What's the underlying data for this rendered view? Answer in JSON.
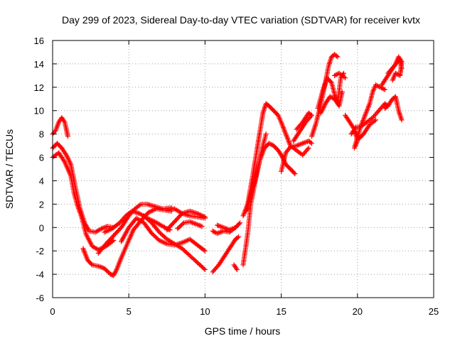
{
  "chart_data": {
    "type": "scatter",
    "title": "Day 299 of 2023, Sidereal Day-to-day VTEC variation (SDTVAR) for receiver kvtx",
    "xlabel": "GPS time / hours",
    "ylabel": "SDTVAR / TECUs",
    "xlim": [
      0,
      25
    ],
    "ylim": [
      -6,
      16
    ],
    "xticks": [
      0,
      5,
      10,
      15,
      20,
      25
    ],
    "yticks": [
      -6,
      -4,
      -2,
      0,
      2,
      4,
      6,
      8,
      10,
      12,
      14,
      16
    ],
    "xtick_labels": [
      "0",
      "5",
      "10",
      "15",
      "20",
      "25"
    ],
    "ytick_labels": [
      "-6",
      "-4",
      "-2",
      "0",
      "2",
      "4",
      "6",
      "8",
      "10",
      "12",
      "14",
      "16"
    ],
    "grid": true,
    "marker": "plus",
    "color": "#ff0000",
    "series": [
      {
        "points": [
          [
            0.0,
            8.0
          ],
          [
            0.2,
            8.3
          ],
          [
            0.4,
            9.0
          ],
          [
            0.6,
            9.4
          ],
          [
            0.8,
            9.0
          ],
          [
            1.0,
            7.8
          ]
        ]
      },
      {
        "points": [
          [
            0.0,
            6.8
          ],
          [
            0.3,
            7.2
          ],
          [
            0.6,
            6.8
          ],
          [
            0.9,
            6.2
          ],
          [
            1.2,
            5.4
          ],
          [
            1.5,
            3.4
          ],
          [
            1.8,
            1.6
          ],
          [
            2.1,
            0.4
          ],
          [
            2.4,
            -0.3
          ],
          [
            2.8,
            -0.4
          ],
          [
            3.2,
            -0.1
          ],
          [
            3.6,
            0.1
          ],
          [
            4.0,
            0.0
          ]
        ]
      },
      {
        "points": [
          [
            0.0,
            6.0
          ],
          [
            0.4,
            6.4
          ],
          [
            0.8,
            5.6
          ],
          [
            1.2,
            4.4
          ],
          [
            1.4,
            3.0
          ],
          [
            1.6,
            2.0
          ],
          [
            1.9,
            0.9
          ],
          [
            2.2,
            -0.6
          ],
          [
            2.6,
            -1.6
          ],
          [
            3.0,
            -1.9
          ],
          [
            3.5,
            -1.6
          ],
          [
            4.0,
            -1.1
          ]
        ]
      },
      {
        "points": [
          [
            2.0,
            -1.8
          ],
          [
            2.3,
            -2.8
          ],
          [
            2.6,
            -3.2
          ],
          [
            3.0,
            -3.3
          ],
          [
            3.4,
            -3.5
          ],
          [
            3.8,
            -4.0
          ],
          [
            4.0,
            -4.1
          ],
          [
            4.2,
            -3.6
          ],
          [
            4.5,
            -2.6
          ],
          [
            4.9,
            -1.4
          ],
          [
            5.3,
            -0.2
          ],
          [
            5.8,
            0.6
          ],
          [
            6.3,
            1.3
          ],
          [
            6.8,
            1.6
          ],
          [
            7.3,
            1.5
          ],
          [
            7.8,
            1.4
          ]
        ]
      },
      {
        "points": [
          [
            3.0,
            -2.2
          ],
          [
            3.5,
            -1.4
          ],
          [
            4.0,
            -0.7
          ],
          [
            4.5,
            0.0
          ],
          [
            5.0,
            1.0
          ],
          [
            5.4,
            1.6
          ],
          [
            5.8,
            2.0
          ],
          [
            6.2,
            2.0
          ],
          [
            6.7,
            1.8
          ],
          [
            7.2,
            1.6
          ],
          [
            7.8,
            1.7
          ]
        ]
      },
      {
        "points": [
          [
            3.4,
            -0.4
          ],
          [
            3.9,
            -0.1
          ],
          [
            4.4,
            0.4
          ],
          [
            4.8,
            1.0
          ],
          [
            5.2,
            1.4
          ],
          [
            5.7,
            1.2
          ],
          [
            6.2,
            0.8
          ],
          [
            6.7,
            0.5
          ],
          [
            7.1,
            0.2
          ],
          [
            7.5,
            -0.1
          ],
          [
            7.7,
            -0.2
          ]
        ]
      },
      {
        "points": [
          [
            4.5,
            -1.2
          ],
          [
            5.0,
            0.0
          ],
          [
            5.5,
            0.8
          ],
          [
            6.0,
            0.4
          ],
          [
            6.5,
            -0.5
          ],
          [
            7.0,
            -1.1
          ],
          [
            7.5,
            -1.4
          ],
          [
            8.0,
            -1.5
          ],
          [
            8.5,
            -1.3
          ],
          [
            9.0,
            -1.0
          ],
          [
            9.5,
            -1.5
          ],
          [
            10.0,
            -2.0
          ]
        ]
      },
      {
        "points": [
          [
            6.0,
            1.0
          ],
          [
            6.5,
            0.4
          ],
          [
            7.0,
            -0.4
          ],
          [
            7.5,
            -1.0
          ],
          [
            8.0,
            -1.4
          ],
          [
            8.5,
            -1.8
          ],
          [
            9.0,
            -2.4
          ],
          [
            9.5,
            -3.0
          ],
          [
            10.0,
            -3.6
          ]
        ]
      },
      {
        "points": [
          [
            7.5,
            1.5
          ],
          [
            8.0,
            1.6
          ],
          [
            8.5,
            1.2
          ],
          [
            9.0,
            1.0
          ],
          [
            9.5,
            0.9
          ],
          [
            10.0,
            0.8
          ]
        ]
      },
      {
        "points": [
          [
            7.5,
            -0.2
          ],
          [
            8.0,
            0.5
          ],
          [
            8.5,
            1.2
          ],
          [
            9.0,
            1.4
          ],
          [
            9.5,
            1.2
          ],
          [
            10.0,
            0.9
          ]
        ]
      },
      {
        "points": [
          [
            8.2,
            -0.1
          ],
          [
            8.6,
            0.4
          ],
          [
            9.0,
            0.5
          ],
          [
            9.4,
            0.3
          ],
          [
            9.8,
            0.1
          ]
        ]
      },
      {
        "points": [
          [
            10.5,
            -0.3
          ],
          [
            10.8,
            -0.5
          ],
          [
            11.2,
            -0.3
          ],
          [
            11.6,
            -0.4
          ],
          [
            12.0,
            0.0
          ],
          [
            12.3,
            0.4
          ]
        ]
      },
      {
        "points": [
          [
            10.5,
            -3.8
          ],
          [
            10.9,
            -3.2
          ],
          [
            11.3,
            -2.4
          ],
          [
            11.7,
            -1.6
          ],
          [
            12.0,
            -1.0
          ],
          [
            12.2,
            -0.8
          ]
        ]
      },
      {
        "points": [
          [
            10.8,
            0.2
          ],
          [
            11.2,
            0.0
          ],
          [
            11.6,
            -0.2
          ],
          [
            12.0,
            0.0
          ]
        ]
      },
      {
        "points": [
          [
            11.9,
            -3.2
          ],
          [
            12.1,
            -3.6
          ]
        ]
      },
      {
        "points": [
          [
            12.5,
            1.0
          ],
          [
            12.8,
            2.0
          ],
          [
            13.0,
            3.5
          ],
          [
            13.2,
            5.0
          ],
          [
            13.4,
            6.6
          ],
          [
            13.6,
            8.2
          ],
          [
            13.8,
            9.8
          ],
          [
            14.0,
            10.6
          ],
          [
            14.2,
            10.4
          ],
          [
            14.5,
            10.0
          ],
          [
            14.8,
            9.6
          ],
          [
            15.0,
            9.0
          ],
          [
            15.3,
            8.0
          ],
          [
            15.6,
            7.0
          ],
          [
            16.0,
            6.6
          ],
          [
            16.4,
            6.2
          ],
          [
            16.8,
            6.8
          ]
        ]
      },
      {
        "points": [
          [
            12.7,
            1.4
          ],
          [
            13.0,
            2.8
          ],
          [
            13.3,
            4.2
          ],
          [
            13.6,
            5.8
          ],
          [
            13.9,
            6.8
          ],
          [
            14.2,
            7.2
          ],
          [
            14.5,
            7.0
          ],
          [
            14.8,
            6.6
          ],
          [
            15.0,
            6.2
          ],
          [
            15.3,
            5.4
          ],
          [
            15.6,
            5.0
          ],
          [
            15.9,
            4.6
          ]
        ]
      },
      {
        "points": [
          [
            12.5,
            -3.2
          ],
          [
            12.8,
            -0.5
          ],
          [
            13.0,
            2.0
          ],
          [
            13.3,
            4.0
          ],
          [
            13.6,
            5.8
          ],
          [
            13.8,
            7.0
          ],
          [
            14.0,
            8.0
          ]
        ]
      },
      {
        "points": [
          [
            15.0,
            4.8
          ],
          [
            15.3,
            6.4
          ],
          [
            15.6,
            6.9
          ],
          [
            16.0,
            7.0
          ],
          [
            16.4,
            7.2
          ],
          [
            16.8,
            7.4
          ],
          [
            17.0,
            7.2
          ]
        ]
      },
      {
        "points": [
          [
            15.8,
            7.4
          ],
          [
            16.2,
            8.2
          ],
          [
            16.6,
            9.0
          ],
          [
            17.0,
            9.6
          ],
          [
            16.8,
            9.8
          ],
          [
            16.4,
            9.0
          ],
          [
            16.0,
            8.4
          ]
        ]
      },
      {
        "points": [
          [
            17.0,
            7.8
          ],
          [
            17.3,
            9.0
          ],
          [
            17.6,
            10.6
          ],
          [
            17.9,
            12.4
          ],
          [
            18.1,
            13.8
          ],
          [
            18.3,
            14.6
          ],
          [
            18.5,
            14.8
          ],
          [
            18.7,
            14.6
          ]
        ]
      },
      {
        "points": [
          [
            17.4,
            10.2
          ],
          [
            17.7,
            11.6
          ],
          [
            18.0,
            12.8
          ],
          [
            18.3,
            12.4
          ],
          [
            18.5,
            11.4
          ],
          [
            18.7,
            10.6
          ],
          [
            18.9,
            12.8
          ],
          [
            19.1,
            13.2
          ]
        ]
      },
      {
        "points": [
          [
            17.6,
            9.8
          ],
          [
            17.9,
            10.6
          ],
          [
            18.2,
            11.2
          ],
          [
            18.5,
            11.0
          ],
          [
            18.8,
            10.4
          ],
          [
            19.0,
            11.6
          ]
        ]
      },
      {
        "points": [
          [
            18.5,
            13.0
          ],
          [
            18.8,
            13.2
          ],
          [
            19.2,
            12.8
          ]
        ]
      },
      {
        "points": [
          [
            19.2,
            9.6
          ],
          [
            19.5,
            9.0
          ],
          [
            19.8,
            8.4
          ],
          [
            20.0,
            7.4
          ],
          [
            19.8,
            6.8
          ],
          [
            20.2,
            8.6
          ],
          [
            20.5,
            9.6
          ],
          [
            20.8,
            10.6
          ],
          [
            21.0,
            11.6
          ],
          [
            21.2,
            12.2
          ],
          [
            21.5,
            12.0
          ],
          [
            21.8,
            11.8
          ]
        ]
      },
      {
        "points": [
          [
            19.6,
            8.0
          ],
          [
            19.9,
            8.6
          ],
          [
            20.2,
            8.6
          ],
          [
            20.6,
            9.0
          ],
          [
            21.0,
            9.4
          ],
          [
            21.4,
            10.0
          ],
          [
            21.8,
            10.6
          ],
          [
            22.0,
            10.4
          ]
        ]
      },
      {
        "points": [
          [
            19.8,
            8.2
          ],
          [
            20.1,
            7.6
          ],
          [
            20.4,
            8.0
          ],
          [
            20.8,
            8.8
          ],
          [
            21.2,
            9.2
          ]
        ]
      },
      {
        "points": [
          [
            21.6,
            12.2
          ],
          [
            21.9,
            12.8
          ],
          [
            22.2,
            13.4
          ],
          [
            22.5,
            14.0
          ],
          [
            22.7,
            14.6
          ],
          [
            22.9,
            14.2
          ],
          [
            22.8,
            13.0
          ],
          [
            22.5,
            13.2
          ],
          [
            22.3,
            12.6
          ]
        ]
      },
      {
        "points": [
          [
            21.8,
            10.2
          ],
          [
            22.0,
            10.4
          ],
          [
            22.3,
            11.0
          ],
          [
            22.5,
            11.2
          ],
          [
            22.7,
            10.0
          ],
          [
            22.9,
            9.2
          ]
        ]
      },
      {
        "points": [
          [
            22.0,
            13.2
          ],
          [
            22.4,
            13.8
          ],
          [
            22.8,
            14.4
          ],
          [
            22.9,
            13.6
          ]
        ]
      }
    ]
  }
}
